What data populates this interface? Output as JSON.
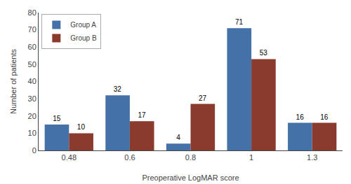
{
  "chart_data": {
    "type": "bar",
    "categories": [
      "0.48",
      "0.6",
      "0.8",
      "1",
      "1.3"
    ],
    "series": [
      {
        "name": "Group A",
        "color": "#4472a8",
        "values": [
          15,
          32,
          4,
          71,
          16
        ]
      },
      {
        "name": "Group B",
        "color": "#8b3a2e",
        "values": [
          10,
          17,
          27,
          53,
          16
        ]
      }
    ],
    "xlabel": "Preoperative LogMAR score",
    "ylabel": "Number of patients",
    "ylim": [
      0,
      80
    ],
    "yticks": [
      0,
      10,
      20,
      30,
      40,
      50,
      60,
      70,
      80
    ],
    "grid": false,
    "legend": "upper left",
    "data_labels": true
  }
}
